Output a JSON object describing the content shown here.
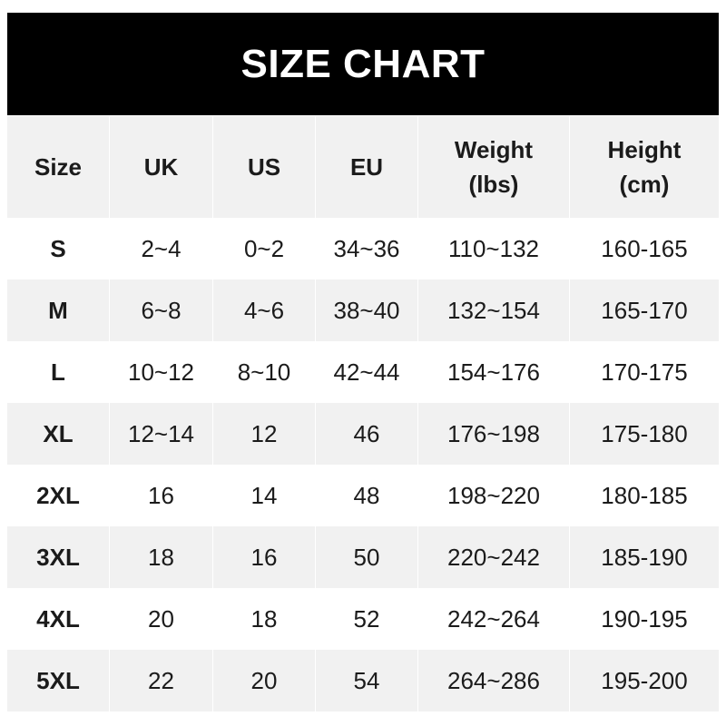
{
  "title": "SIZE CHART",
  "chart_data": {
    "type": "table",
    "title": "SIZE CHART",
    "columns": [
      "Size",
      "UK",
      "US",
      "EU",
      "Weight (lbs)",
      "Height (cm)"
    ],
    "rows": [
      [
        "S",
        "2~4",
        "0~2",
        "34~36",
        "110~132",
        "160-165"
      ],
      [
        "M",
        "6~8",
        "4~6",
        "38~40",
        "132~154",
        "165-170"
      ],
      [
        "L",
        "10~12",
        "8~10",
        "42~44",
        "154~176",
        "170-175"
      ],
      [
        "XL",
        "12~14",
        "12",
        "46",
        "176~198",
        "175-180"
      ],
      [
        "2XL",
        "16",
        "14",
        "48",
        "198~220",
        "180-185"
      ],
      [
        "3XL",
        "18",
        "16",
        "50",
        "220~242",
        "185-190"
      ],
      [
        "4XL",
        "20",
        "18",
        "52",
        "242~264",
        "190-195"
      ],
      [
        "5XL",
        "22",
        "20",
        "54",
        "264~286",
        "195-200"
      ]
    ]
  },
  "colors": {
    "header_bg": "#000000",
    "stripe": "#f1f1f1",
    "text": "#1b1b1b"
  }
}
